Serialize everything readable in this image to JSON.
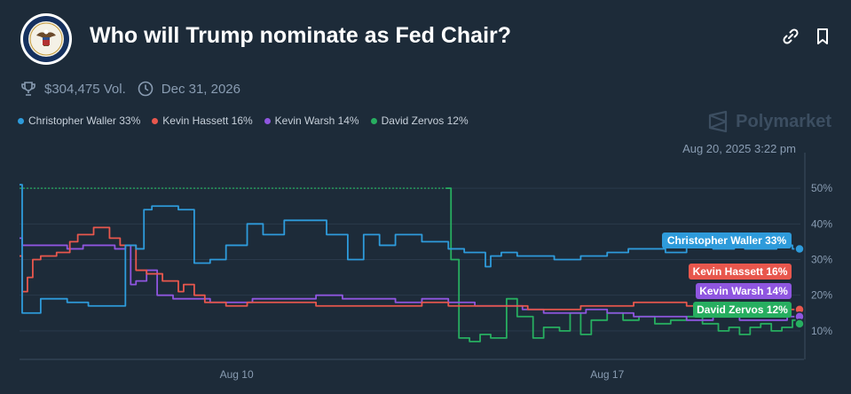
{
  "header": {
    "title": "Who will Trump nominate as Fed Chair?",
    "logo_icon": "federal-reserve-seal-icon",
    "link_icon": "link-icon",
    "bookmark_icon": "bookmark-icon"
  },
  "meta": {
    "volume": "$304,475 Vol.",
    "volume_icon": "trophy-icon",
    "end_date": "Dec 31, 2026",
    "end_date_icon": "clock-icon"
  },
  "brand": {
    "name": "Polymarket"
  },
  "timestamp": "Aug 20, 2025 3:22 pm",
  "legend": [
    {
      "label": "Christopher Waller 33%",
      "color": "#2e9bdb"
    },
    {
      "label": "Kevin Hassett 16%",
      "color": "#e8574d"
    },
    {
      "label": "Kevin Warsh 14%",
      "color": "#8f56e0"
    },
    {
      "label": "David Zervos 12%",
      "color": "#27ae60"
    }
  ],
  "chart_data": {
    "type": "line",
    "x_ticks": [
      {
        "x": 10,
        "label": "Aug 10"
      },
      {
        "x": 17,
        "label": "Aug 17"
      }
    ],
    "xlim": [
      5.9,
      20.65
    ],
    "ylim": [
      2,
      58
    ],
    "y_ticks": [
      {
        "value": 10,
        "label": "10%"
      },
      {
        "value": 20,
        "label": "20%"
      },
      {
        "value": 30,
        "label": "30%"
      },
      {
        "value": 40,
        "label": "40%"
      },
      {
        "value": 50,
        "label": "50%"
      }
    ],
    "grid": true,
    "y_axis_side": "right",
    "series": [
      {
        "name": "Christopher Waller",
        "color": "#2e9bdb",
        "label": "Christopher Waller 33%",
        "end_value": 33,
        "x": [
          5.9,
          5.95,
          6.1,
          6.3,
          6.5,
          6.8,
          7.2,
          7.7,
          7.9,
          8.1,
          8.25,
          8.4,
          8.6,
          8.9,
          9.2,
          9.3,
          9.5,
          9.8,
          10.2,
          10.5,
          10.9,
          11.5,
          11.7,
          11.9,
          12.1,
          12.4,
          12.7,
          13.0,
          13.3,
          13.5,
          14.0,
          14.3,
          14.6,
          14.7,
          14.8,
          15.0,
          15.3,
          16.0,
          16.5,
          17.0,
          17.4,
          17.8,
          18.1,
          18.5,
          19.0,
          19.4,
          19.6,
          19.9,
          20.2,
          20.5,
          20.65
        ],
        "values": [
          51,
          15,
          15,
          19,
          19,
          18,
          17,
          17,
          34,
          33,
          44,
          45,
          45,
          44,
          29,
          29,
          30,
          34,
          40,
          37,
          41,
          41,
          37,
          37,
          30,
          37,
          34,
          37,
          37,
          35,
          33,
          32,
          32,
          28,
          31,
          32,
          31,
          30,
          31,
          32,
          33,
          33,
          32,
          34,
          33,
          34,
          33,
          33,
          34,
          33,
          33
        ]
      },
      {
        "name": "Kevin Hassett",
        "color": "#e8574d",
        "label": "Kevin Hassett 16%",
        "end_value": 16,
        "x": [
          5.9,
          5.95,
          6.05,
          6.15,
          6.3,
          6.6,
          6.85,
          7.0,
          7.3,
          7.6,
          7.8,
          8.1,
          8.3,
          8.6,
          8.9,
          9.0,
          9.2,
          9.4,
          9.8,
          10.2,
          10.8,
          11.5,
          12.0,
          12.5,
          13.0,
          13.5,
          14.0,
          14.5,
          15.0,
          15.5,
          16.0,
          16.5,
          17.0,
          17.5,
          18.0,
          18.5,
          19.0,
          19.5,
          20.0,
          20.4,
          20.65
        ],
        "values": [
          31,
          21,
          25,
          30,
          31,
          32,
          35,
          37,
          39,
          36,
          34,
          27,
          26,
          24,
          21,
          23,
          20,
          18,
          17,
          18,
          18,
          17,
          17,
          17,
          17,
          18,
          17,
          17,
          17,
          16,
          16,
          17,
          17,
          18,
          18,
          17,
          18,
          17,
          16,
          16,
          16
        ]
      },
      {
        "name": "Kevin Warsh",
        "color": "#8f56e0",
        "label": "Kevin Warsh 14%",
        "end_value": 14,
        "x": [
          5.9,
          5.95,
          6.05,
          6.4,
          6.8,
          7.1,
          7.4,
          7.7,
          7.9,
          8.0,
          8.1,
          8.3,
          8.5,
          8.8,
          9.2,
          9.5,
          9.8,
          10.3,
          10.8,
          11.5,
          12.0,
          12.5,
          13.0,
          13.5,
          14.0,
          14.5,
          15.0,
          15.4,
          15.8,
          16.2,
          16.6,
          17.0,
          17.5,
          18.0,
          18.5,
          19.0,
          19.5,
          20.0,
          20.4,
          20.65
        ],
        "values": [
          36,
          34,
          34,
          34,
          33,
          34,
          34,
          33,
          34,
          23,
          24,
          27,
          20,
          19,
          19,
          18,
          18,
          19,
          19,
          20,
          19,
          19,
          18,
          19,
          18,
          17,
          17,
          16,
          15,
          15,
          16,
          15,
          14,
          14,
          13,
          14,
          13,
          13,
          14,
          14
        ]
      },
      {
        "name": "David Zervos",
        "color": "#27ae60",
        "label": "David Zervos 12%",
        "end_value": 12,
        "x": [
          5.9,
          13.95,
          14.05,
          14.2,
          14.4,
          14.6,
          14.8,
          15.1,
          15.3,
          15.6,
          15.8,
          16.1,
          16.3,
          16.5,
          16.7,
          17.0,
          17.3,
          17.6,
          17.9,
          18.2,
          18.5,
          18.8,
          19.1,
          19.3,
          19.5,
          19.7,
          19.9,
          20.1,
          20.3,
          20.5,
          20.65
        ],
        "values": [
          50,
          50,
          30,
          8,
          7,
          9,
          8,
          19,
          14,
          8,
          11,
          10,
          15,
          9,
          13,
          15,
          13,
          14,
          12,
          13,
          14,
          12,
          10,
          11,
          9,
          11,
          12,
          10,
          11,
          13,
          12
        ]
      }
    ]
  }
}
